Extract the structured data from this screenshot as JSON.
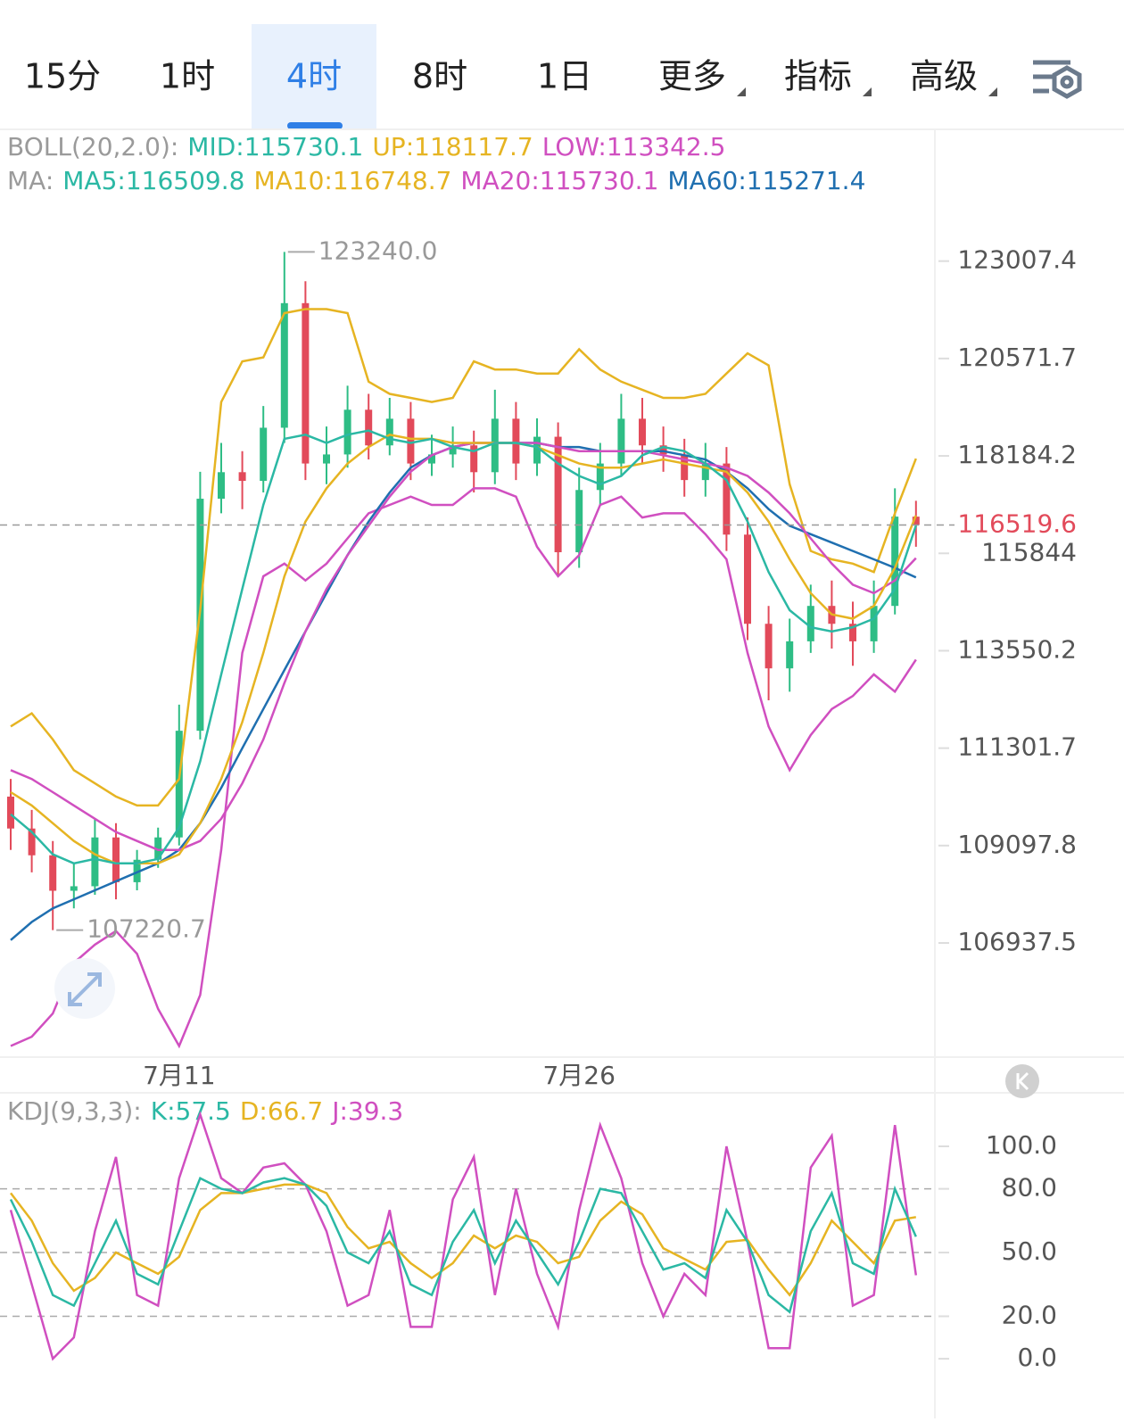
{
  "tabs": [
    "15分",
    "1时",
    "4时",
    "8时",
    "1日",
    "更多",
    "指标",
    "高级"
  ],
  "selected_tab": 2,
  "chart_data": [
    {
      "type": "candlestick",
      "log_scale": true,
      "ylim": [
        104460,
        126380
      ],
      "yticks": [
        123007.4,
        120571.7,
        118184.2,
        115844.0,
        113550.2,
        111301.7,
        109097.8,
        106937.5
      ],
      "legend_rows": [
        [
          {
            "text": "BOLL(20,2.0):",
            "color": "#9a9a9a"
          },
          {
            "text": "MID:115730.1",
            "color": "#2bb8a4"
          },
          {
            "text": "UP:118117.7",
            "color": "#e6b422"
          },
          {
            "text": "LOW:113342.5",
            "color": "#d04fc0"
          }
        ],
        [
          {
            "text": "MA:",
            "color": "#9a9a9a"
          },
          {
            "text": "MA5:116509.8",
            "color": "#2bb8a4"
          },
          {
            "text": "MA10:116748.7",
            "color": "#e6b422"
          },
          {
            "text": "MA20:115730.1",
            "color": "#d04fc0"
          },
          {
            "text": "MA60:115271.4",
            "color": "#1f6fb0"
          }
        ]
      ],
      "categories": [
        null,
        null,
        null,
        null,
        null,
        null,
        null,
        null,
        "7月11",
        null,
        null,
        null,
        null,
        null,
        null,
        null,
        null,
        null,
        null,
        null,
        null,
        null,
        null,
        null,
        null,
        null,
        null,
        "7月26",
        null,
        null,
        null,
        null,
        null,
        null,
        null,
        null,
        null,
        null,
        null,
        null,
        null,
        null,
        null,
        null
      ],
      "up_color": "#2ebd85",
      "down_color": "#e24a5a",
      "open": [
        110200,
        109480,
        108880,
        108090,
        108190,
        109280,
        108280,
        108780,
        109280,
        111700,
        117150,
        117790,
        117580,
        118870,
        121950,
        118000,
        118220,
        119310,
        118440,
        119090,
        118000,
        118220,
        118440,
        117790,
        119090,
        118000,
        118650,
        115870,
        117360,
        118000,
        119090,
        118440,
        118220,
        117600,
        118000,
        116290,
        114180,
        113140,
        113770,
        114600,
        114180,
        113770,
        114600,
        116720
      ],
      "high": [
        110600,
        109900,
        109200,
        108700,
        109700,
        109600,
        109000,
        109500,
        112300,
        117800,
        118500,
        118300,
        119400,
        123240,
        122500,
        118900,
        119900,
        119700,
        119600,
        119500,
        118700,
        118900,
        118800,
        119800,
        119500,
        119100,
        119000,
        117900,
        118500,
        119700,
        119600,
        118900,
        118600,
        118500,
        118400,
        116700,
        114600,
        114300,
        115100,
        115200,
        114700,
        115200,
        117400,
        117100
      ],
      "low": [
        109000,
        108500,
        107220.7,
        107700,
        108000,
        107900,
        108100,
        108600,
        109100,
        111500,
        116800,
        116900,
        117300,
        118500,
        117600,
        117500,
        117900,
        118100,
        118200,
        117600,
        117700,
        117900,
        117300,
        117500,
        117600,
        117700,
        115300,
        115500,
        117000,
        117700,
        118000,
        117800,
        117200,
        117200,
        115900,
        113800,
        112400,
        112600,
        113500,
        113600,
        113200,
        113500,
        114400,
        116000
      ],
      "close": [
        109480,
        108880,
        108090,
        108190,
        109280,
        108280,
        108780,
        109280,
        111700,
        117150,
        117790,
        117580,
        118870,
        121950,
        118000,
        118220,
        119310,
        118440,
        119090,
        118000,
        118220,
        118440,
        117790,
        119090,
        118000,
        118650,
        115870,
        117360,
        118000,
        119090,
        118440,
        118220,
        117600,
        118000,
        116290,
        114180,
        113140,
        113770,
        114600,
        114180,
        113770,
        114600,
        116720,
        116519.6
      ],
      "max_label": "123240.0",
      "min_label": "107220.7",
      "last_price_label": "116519.6",
      "last_price_color": "#e24a5a",
      "lines": [
        {
          "color": "#e6b422",
          "values": [
            111800,
            112100,
            111500,
            110800,
            110500,
            110200,
            110000,
            110000,
            110600,
            114500,
            119500,
            120500,
            120600,
            121700,
            121800,
            121800,
            121700,
            120000,
            119700,
            119600,
            119500,
            119600,
            120500,
            120300,
            120300,
            120200,
            120200,
            120800,
            120300,
            120000,
            119800,
            119600,
            119600,
            119700,
            120200,
            120700,
            120400,
            117500,
            115900,
            115700,
            115600,
            115400,
            116800,
            118117.7
          ]
        },
        {
          "color": "#d04fc0",
          "values": [
            104700,
            104900,
            105400,
            106500,
            106900,
            107200,
            106700,
            105500,
            104700,
            105800,
            109000,
            113500,
            115300,
            115600,
            115200,
            115600,
            116200,
            116800,
            117000,
            117200,
            117000,
            117000,
            117400,
            117400,
            117200,
            116000,
            115300,
            115800,
            117000,
            117200,
            116700,
            116800,
            116800,
            116300,
            115700,
            113500,
            111800,
            110800,
            111600,
            112200,
            112500,
            113000,
            112600,
            113342.5
          ]
        },
        {
          "color": "#1f6fb0",
          "values": [
            107000,
            107400,
            107700,
            107900,
            108100,
            108300,
            108500,
            108700,
            109000,
            109600,
            110400,
            111300,
            112200,
            113100,
            114000,
            114900,
            115800,
            116600,
            117300,
            117900,
            118200,
            118400,
            118500,
            118500,
            118500,
            118500,
            118400,
            118400,
            118300,
            118300,
            118300,
            118300,
            118200,
            118100,
            117800,
            117400,
            116900,
            116500,
            116300,
            116100,
            115900,
            115700,
            115500,
            115271.4
          ]
        },
        {
          "color": "#d04fc0",
          "values": [
            110800,
            110600,
            110300,
            110000,
            109700,
            109400,
            109200,
            109000,
            109000,
            109200,
            109700,
            110500,
            111500,
            112800,
            114000,
            115000,
            115800,
            116500,
            117200,
            117800,
            118200,
            118400,
            118500,
            118500,
            118500,
            118500,
            118400,
            118300,
            118300,
            118300,
            118300,
            118200,
            118100,
            118000,
            117900,
            117700,
            117300,
            116800,
            116200,
            115600,
            115100,
            114900,
            115200,
            115730.1
          ]
        },
        {
          "color": "#e6b422",
          "values": [
            110300,
            110000,
            109600,
            109200,
            108900,
            108700,
            108700,
            108700,
            108900,
            109600,
            110600,
            111900,
            113500,
            115300,
            116600,
            117400,
            118000,
            118400,
            118700,
            118600,
            118600,
            118500,
            118500,
            118500,
            118500,
            118400,
            118200,
            118000,
            117900,
            117900,
            118000,
            118100,
            118000,
            117900,
            117800,
            117300,
            116600,
            115700,
            114900,
            114400,
            114300,
            114600,
            115500,
            116748.7
          ]
        },
        {
          "color": "#2bb8a4",
          "values": [
            109800,
            109400,
            108900,
            108700,
            108800,
            108700,
            108700,
            108800,
            109500,
            111000,
            113000,
            115000,
            117000,
            118600,
            118700,
            118500,
            118700,
            118800,
            118600,
            118500,
            118600,
            118400,
            118300,
            118500,
            118500,
            118400,
            118000,
            117700,
            117500,
            117700,
            118200,
            118400,
            118300,
            118000,
            117600,
            116600,
            115400,
            114500,
            114100,
            114000,
            114100,
            114300,
            115000,
            116509.8
          ]
        }
      ]
    },
    {
      "type": "line",
      "ylim": [
        -17.6,
        125.2
      ],
      "yticks": [
        {
          "value": 100,
          "label": "100.0"
        },
        {
          "value": 80,
          "label": "80.0"
        },
        {
          "value": 50,
          "label": "50.0"
        },
        {
          "value": 20,
          "label": "20.0"
        },
        {
          "value": 0,
          "label": "0.0"
        }
      ],
      "dashed_levels": [
        80,
        50,
        20
      ],
      "legend": [
        {
          "text": "KDJ(9,3,3):",
          "color": "#9a9a9a"
        },
        {
          "text": "K:57.5",
          "color": "#2bb8a4"
        },
        {
          "text": "D:66.7",
          "color": "#e6b422"
        },
        {
          "text": "J:39.3",
          "color": "#d04fc0"
        }
      ],
      "series": [
        {
          "color": "#d04fc0",
          "values": [
            70,
            35,
            0,
            10,
            60,
            95,
            30,
            25,
            85,
            115,
            85,
            78,
            90,
            92,
            82,
            60,
            25,
            30,
            70,
            15,
            15,
            75,
            95,
            30,
            80,
            40,
            15,
            70,
            110,
            85,
            45,
            20,
            40,
            30,
            100,
            55,
            5,
            5,
            90,
            105,
            25,
            30,
            110,
            39.3
          ]
        },
        {
          "color": "#e6b422",
          "values": [
            78,
            65,
            45,
            32,
            38,
            50,
            45,
            40,
            48,
            70,
            78,
            78,
            80,
            82,
            82,
            78,
            62,
            52,
            55,
            45,
            38,
            45,
            58,
            52,
            58,
            55,
            45,
            48,
            65,
            74,
            68,
            52,
            47,
            42,
            55,
            56,
            42,
            30,
            45,
            65,
            55,
            45,
            65,
            66.7
          ]
        },
        {
          "color": "#2bb8a4",
          "values": [
            75,
            55,
            30,
            25,
            45,
            65,
            40,
            35,
            60,
            85,
            80,
            78,
            83,
            85,
            82,
            72,
            50,
            45,
            60,
            35,
            30,
            55,
            70,
            45,
            65,
            50,
            35,
            55,
            80,
            78,
            60,
            42,
            45,
            38,
            70,
            55,
            30,
            22,
            60,
            78,
            45,
            40,
            80,
            57.5
          ]
        }
      ]
    }
  ]
}
